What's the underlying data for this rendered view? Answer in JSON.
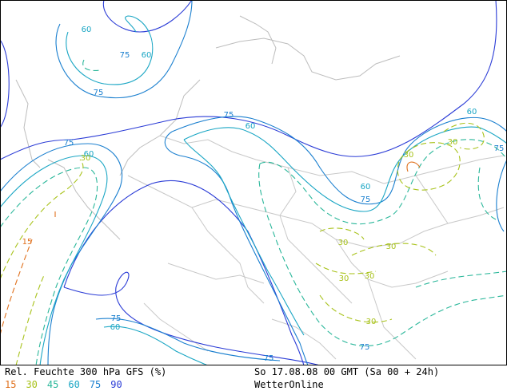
{
  "title": "Rel. Feuchte 300 hPa GFS (%)",
  "run": "So 17.08.08 00 GMT (Sa 00 + 24h)",
  "provider": "WetterOnline",
  "legend": [
    {
      "value": "15",
      "color": "#e0701c"
    },
    {
      "value": "30",
      "color": "#a8c21a"
    },
    {
      "value": "45",
      "color": "#2ab79a"
    },
    {
      "value": "60",
      "color": "#1aa6c4"
    },
    {
      "value": "75",
      "color": "#1a7fcf"
    },
    {
      "value": "90",
      "color": "#2a3bd6"
    }
  ],
  "contour_labels": [
    {
      "text": "60"
    },
    {
      "text": "75"
    },
    {
      "text": "60"
    },
    {
      "text": "75"
    },
    {
      "text": "75"
    },
    {
      "text": "60"
    },
    {
      "text": "75"
    },
    {
      "text": "60"
    },
    {
      "text": "30"
    },
    {
      "text": "15"
    },
    {
      "text": "75"
    },
    {
      "text": "60"
    },
    {
      "text": "60"
    },
    {
      "text": "30"
    },
    {
      "text": "30"
    },
    {
      "text": "75"
    },
    {
      "text": "30"
    },
    {
      "text": "30"
    },
    {
      "text": "30"
    },
    {
      "text": "30"
    },
    {
      "text": "30"
    },
    {
      "text": "75"
    },
    {
      "text": "60"
    },
    {
      "text": "75"
    },
    {
      "text": "75"
    }
  ]
}
